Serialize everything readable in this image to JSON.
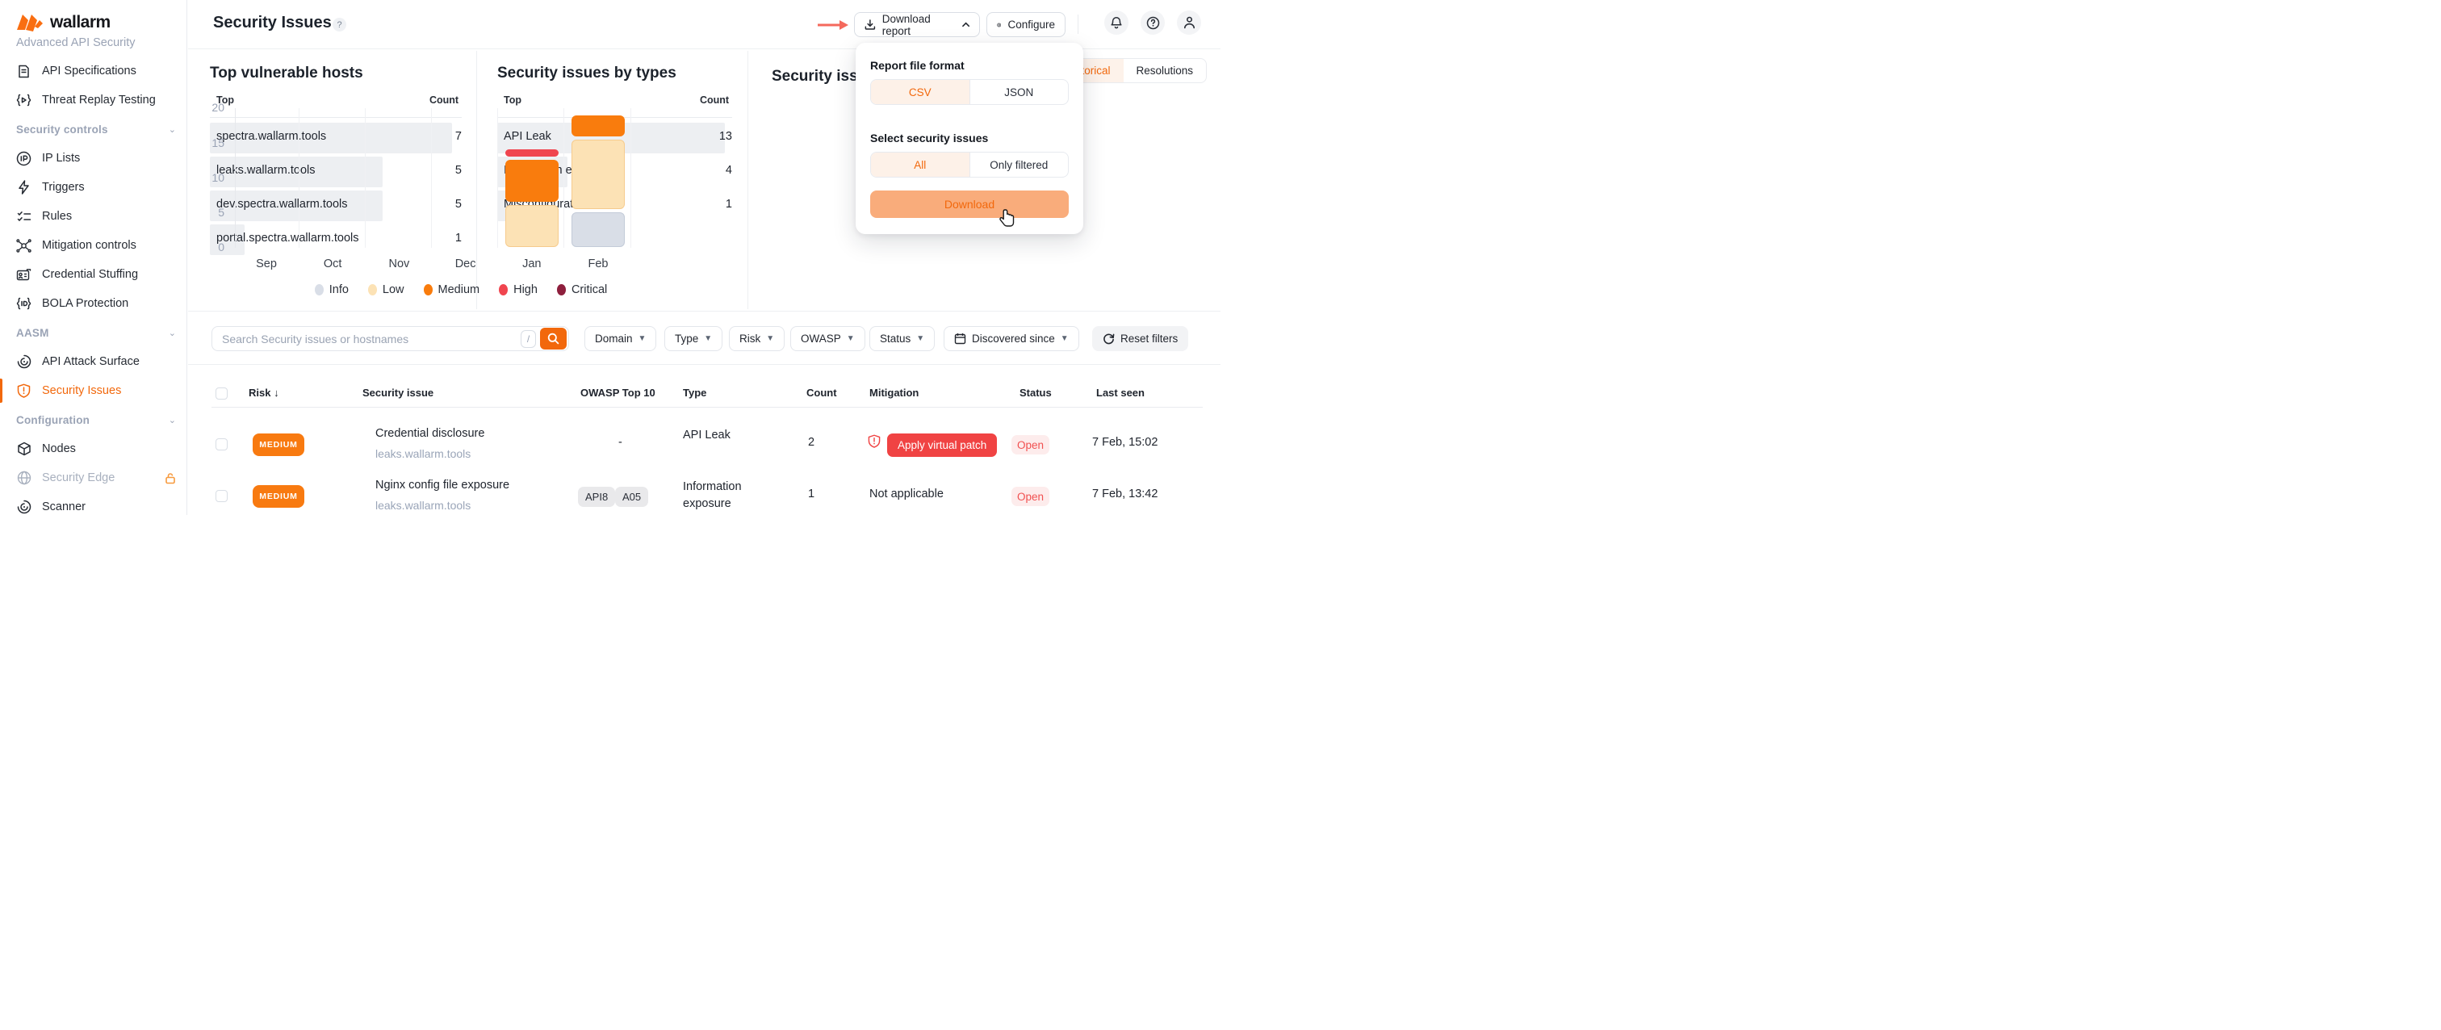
{
  "app": {
    "brand": "wallarm",
    "brand_subtitle": "Advanced API Security",
    "accent_color": "#F2680C",
    "brand_orange": "#F96E11"
  },
  "sidebar": {
    "items": [
      {
        "label": "API Specifications",
        "icon": "document-icon",
        "type": "item"
      },
      {
        "label": "Threat Replay Testing",
        "icon": "braces-play-icon",
        "type": "item"
      },
      {
        "label": "Security controls",
        "icon": "",
        "type": "section"
      },
      {
        "label": "IP Lists",
        "icon": "ip-circle-icon",
        "type": "item"
      },
      {
        "label": "Triggers",
        "icon": "bolt-icon",
        "type": "item"
      },
      {
        "label": "Rules",
        "icon": "checklist-icon",
        "type": "item"
      },
      {
        "label": "Mitigation controls",
        "icon": "network-icon",
        "type": "item"
      },
      {
        "label": "Credential Stuffing",
        "icon": "id-card-icon",
        "type": "item"
      },
      {
        "label": "BOLA Protection",
        "icon": "braces-id-icon",
        "type": "item"
      },
      {
        "label": "AASM",
        "icon": "",
        "type": "section"
      },
      {
        "label": "API Attack Surface",
        "icon": "radar-icon",
        "type": "item"
      },
      {
        "label": "Security Issues",
        "icon": "shield-alert-icon",
        "type": "item",
        "active": true
      },
      {
        "label": "Configuration",
        "icon": "",
        "type": "section"
      },
      {
        "label": "Nodes",
        "icon": "cube-icon",
        "type": "item"
      },
      {
        "label": "Security Edge",
        "icon": "globe-icon",
        "type": "item",
        "disabled": true,
        "locked": true
      },
      {
        "label": "Scanner",
        "icon": "radar-icon",
        "type": "item"
      }
    ]
  },
  "header": {
    "title": "Security Issues",
    "help_icon": "?",
    "download_report_label": "Download report",
    "configure_label": "Configure"
  },
  "download_dropdown": {
    "format_heading": "Report file format",
    "format_options": [
      "CSV",
      "JSON"
    ],
    "format_selected": "CSV",
    "issues_heading": "Select security issues",
    "issues_options": [
      "All",
      "Only filtered"
    ],
    "issues_selected": "All",
    "download_label": "Download",
    "button_bg": "#F9AC7B"
  },
  "top_hosts": {
    "title": "Top vulnerable hosts",
    "col_top": "Top",
    "col_count": "Count",
    "rows": [
      {
        "label": "spectra.wallarm.tools",
        "count": 7
      },
      {
        "label": "leaks.wallarm.tools",
        "count": 5
      },
      {
        "label": "dev.spectra.wallarm.tools",
        "count": 5
      },
      {
        "label": "portal.spectra.wallarm.tools",
        "count": 1
      }
    ]
  },
  "issue_types": {
    "title": "Security issues by types",
    "col_top": "Top",
    "col_count": "Count",
    "rows": [
      {
        "label": "API Leak",
        "count": 13
      },
      {
        "label": "Information exposure",
        "count": 4
      },
      {
        "label": "Misconfiguration",
        "count": 1
      }
    ]
  },
  "chart_data": {
    "type": "bar",
    "stacked": true,
    "title": "Security issues dynamics",
    "tabs": [
      "Historical",
      "Resolutions"
    ],
    "selected_tab": "Historical",
    "categories": [
      "Sep",
      "Oct",
      "Nov",
      "Dec",
      "Jan",
      "Feb"
    ],
    "series": [
      {
        "name": "Info",
        "color": "#D9DEE7",
        "border": "#C3CBD8",
        "values": [
          0,
          0,
          0,
          0,
          0,
          5
        ]
      },
      {
        "name": "Low",
        "color": "#FCE2B5",
        "border": "#F6CB8D",
        "values": [
          0,
          0,
          0,
          0,
          6,
          10
        ]
      },
      {
        "name": "Medium",
        "color": "#F97C0D",
        "border": "#F97C0D",
        "values": [
          0,
          0,
          0,
          0,
          6,
          3
        ]
      },
      {
        "name": "High",
        "color": "#F0454F",
        "border": "#F0454F",
        "values": [
          0,
          0,
          0,
          0,
          1,
          0
        ]
      },
      {
        "name": "Critical",
        "color": "#8E1F3D",
        "border": "#8E1F3D",
        "values": [
          0,
          0,
          0,
          0,
          0,
          0
        ]
      }
    ],
    "ylim": [
      0,
      20
    ],
    "yticks": [
      0,
      5,
      10,
      15,
      20
    ],
    "legend_position": "bottom",
    "grid": "vertical"
  },
  "filters": {
    "search_placeholder": "Search Security issues or hostnames",
    "search_shortcut": "/",
    "chips": [
      "Domain",
      "Type",
      "Risk",
      "OWASP",
      "Status"
    ],
    "date_chip": "Discovered since",
    "reset_label": "Reset filters"
  },
  "table": {
    "columns": [
      "Risk",
      "Security issue",
      "OWASP Top 10",
      "Type",
      "Count",
      "Mitigation",
      "Status",
      "Last seen"
    ],
    "sort_column": "Risk",
    "rows": [
      {
        "risk": "MEDIUM",
        "title": "Credential disclosure",
        "host": "leaks.wallarm.tools",
        "owasp": [],
        "owasp_empty": "-",
        "type": "API Leak",
        "count": "2",
        "mitigation_action": "Apply virtual patch",
        "status": "Open",
        "last_seen": "7 Feb, 15:02"
      },
      {
        "risk": "MEDIUM",
        "title": "Nginx config file exposure",
        "host": "leaks.wallarm.tools",
        "owasp": [
          "API8",
          "A05"
        ],
        "type": "Information exposure",
        "count": "1",
        "mitigation_text": "Not applicable",
        "status": "Open",
        "last_seen": "7 Feb, 13:42"
      }
    ]
  },
  "colors": {
    "risk_medium": "#F87A10",
    "patch_red": "#F04343",
    "status_open_bg": "#FDECEC",
    "status_open_text": "#F15151"
  }
}
